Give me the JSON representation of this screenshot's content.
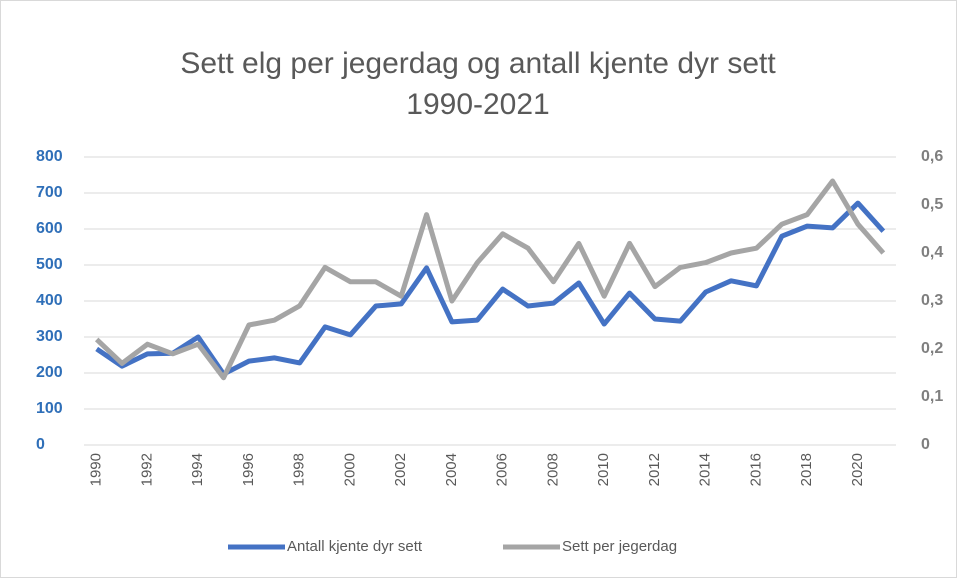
{
  "chart_data": {
    "type": "line",
    "title": [
      "Sett elg per jegerdag og antall kjente dyr sett",
      "1990-2021"
    ],
    "x": [
      1990,
      1991,
      1992,
      1993,
      1994,
      1995,
      1996,
      1997,
      1998,
      1999,
      2000,
      2001,
      2002,
      2003,
      2004,
      2005,
      2006,
      2007,
      2008,
      2009,
      2010,
      2011,
      2012,
      2013,
      2014,
      2015,
      2016,
      2017,
      2018,
      2019,
      2020,
      2021
    ],
    "xlim": [
      1989.5,
      2021.5
    ],
    "xticks": [
      1990,
      1992,
      1994,
      1996,
      1998,
      2000,
      2002,
      2004,
      2006,
      2008,
      2010,
      2012,
      2014,
      2016,
      2018,
      2020
    ],
    "ylim": [
      0,
      800
    ],
    "yticks": [
      0,
      100,
      200,
      300,
      400,
      500,
      600,
      700,
      800
    ],
    "y2lim": [
      0,
      0.6
    ],
    "y2ticks": [
      0,
      {
        "value": 0.1,
        "label": "0,1"
      },
      {
        "value": 0.2,
        "label": "0,2"
      },
      {
        "value": 0.3,
        "label": "0,3"
      },
      {
        "value": 0.4,
        "label": "0,4"
      },
      {
        "value": 0.5,
        "label": "0,5"
      },
      {
        "value": 0.6,
        "label": "0,6"
      }
    ],
    "grid": true,
    "legend": "bottom",
    "series": [
      {
        "name": "Antall kjente dyr sett",
        "color": "#4472c4",
        "values": [
          267,
          219,
          253,
          255,
          300,
          197,
          233,
          242,
          228,
          328,
          306,
          386,
          392,
          492,
          342,
          347,
          433,
          386,
          394,
          450,
          336,
          422,
          350,
          344,
          425,
          456,
          442,
          580,
          608,
          603,
          672,
          594
        ]
      },
      {
        "name": "Sett per jegerdag",
        "color": "#a5a5a5",
        "axis": "y2",
        "values": [
          0.22,
          0.17,
          0.21,
          0.19,
          0.21,
          0.14,
          0.25,
          0.26,
          0.29,
          0.37,
          0.34,
          0.34,
          0.31,
          0.48,
          0.3,
          0.38,
          0.44,
          0.41,
          0.34,
          0.42,
          0.31,
          0.42,
          0.33,
          0.37,
          0.38,
          0.4,
          0.41,
          0.46,
          0.48,
          0.55,
          0.46,
          0.4
        ]
      }
    ]
  }
}
